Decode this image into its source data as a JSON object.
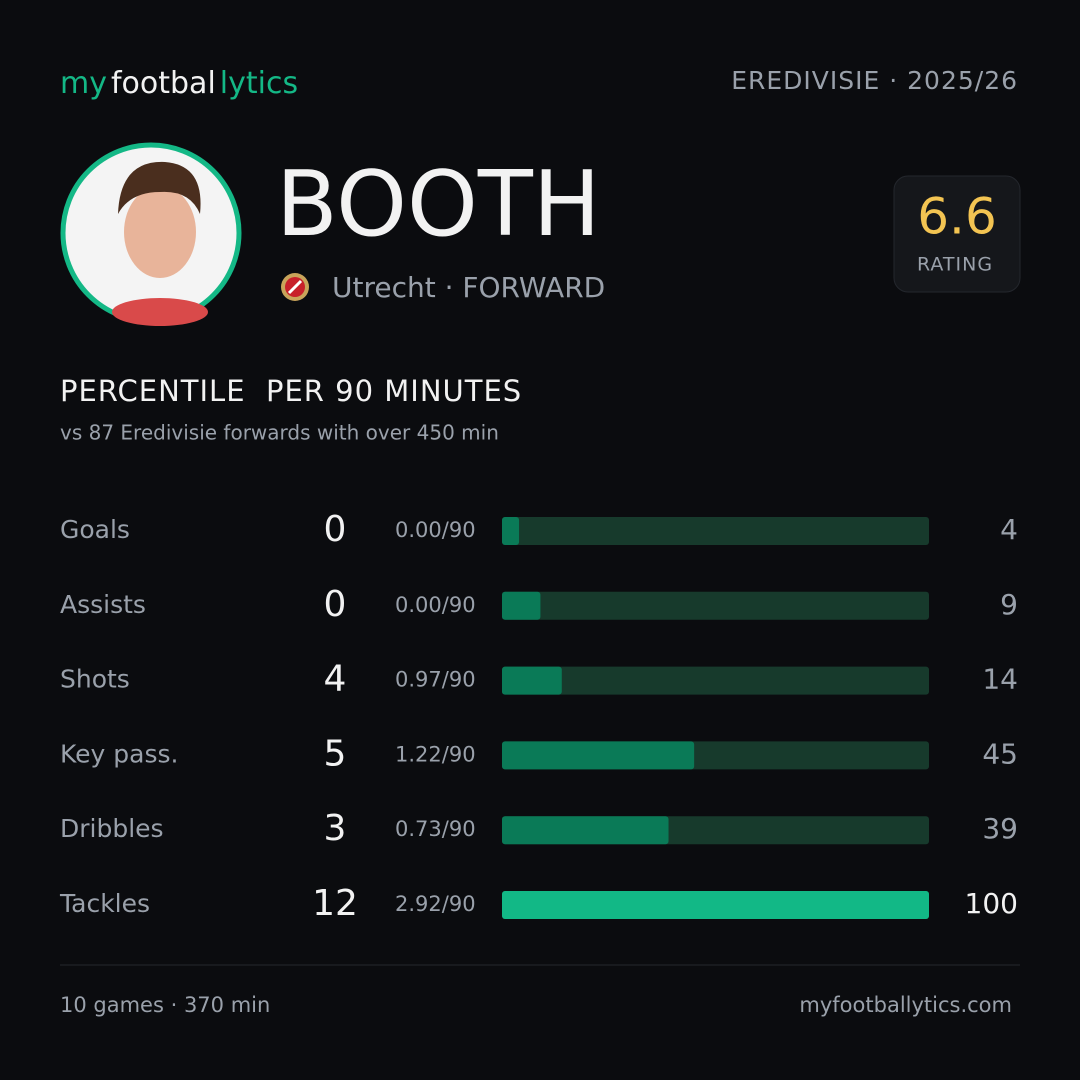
{
  "header": {
    "logo": {
      "my": "my",
      "football": "footbal",
      "lytics": "lytics"
    },
    "league_season": "EREDIVISIE · 2025/26"
  },
  "player": {
    "name": "BOOTH",
    "club_position": "Utrecht · FORWARD",
    "rating": "6.6",
    "rating_label": "RATING"
  },
  "chart_data": {
    "type": "bar",
    "title": "PERCENTILE  PER 90 MINUTES",
    "subtitle": "vs 87 Eredivisie forwards with over 450 min",
    "categories": [
      "Goals",
      "Assists",
      "Shots",
      "Key pass.",
      "Dribbles",
      "Tackles"
    ],
    "counts": [
      0,
      0,
      4,
      5,
      3,
      12
    ],
    "per90": [
      "0.00/90",
      "0.00/90",
      "0.97/90",
      "1.22/90",
      "0.73/90",
      "2.92/90"
    ],
    "values": [
      4,
      9,
      14,
      45,
      39,
      100
    ],
    "colors": [
      "#0a7a57",
      "#0a7a57",
      "#0a7a57",
      "#0a7a57",
      "#0a7a57",
      "#12b886"
    ],
    "track_color": "#173a2c",
    "xlim": [
      0,
      100
    ]
  },
  "footer": {
    "summary": "10 games · 370 min",
    "site": "myfootballytics.com"
  }
}
